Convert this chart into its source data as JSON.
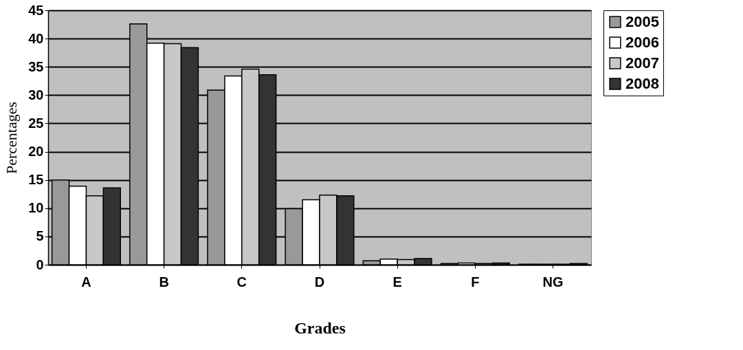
{
  "chart_data": {
    "type": "bar",
    "xlabel": "Grades",
    "ylabel": "Percentages",
    "categories": [
      "A",
      "B",
      "C",
      "D",
      "E",
      "F",
      "NG"
    ],
    "series": [
      {
        "name": "2005",
        "color": "#999999",
        "values": [
          15.0,
          42.6,
          30.9,
          9.9,
          0.7,
          0.2,
          0.1
        ]
      },
      {
        "name": "2006",
        "color": "#ffffff",
        "values": [
          13.9,
          39.2,
          33.4,
          11.5,
          1.0,
          0.3,
          0.1
        ]
      },
      {
        "name": "2007",
        "color": "#c8c8c8",
        "values": [
          12.2,
          39.1,
          34.6,
          12.3,
          0.9,
          0.2,
          0.1
        ]
      },
      {
        "name": "2008",
        "color": "#333333",
        "values": [
          13.6,
          38.4,
          33.6,
          12.2,
          1.1,
          0.3,
          0.2
        ]
      }
    ],
    "ylim": [
      0,
      45
    ],
    "yticks": [
      0,
      5,
      10,
      15,
      20,
      25,
      30,
      35,
      40,
      45
    ],
    "grid": "y",
    "legend": "right"
  }
}
